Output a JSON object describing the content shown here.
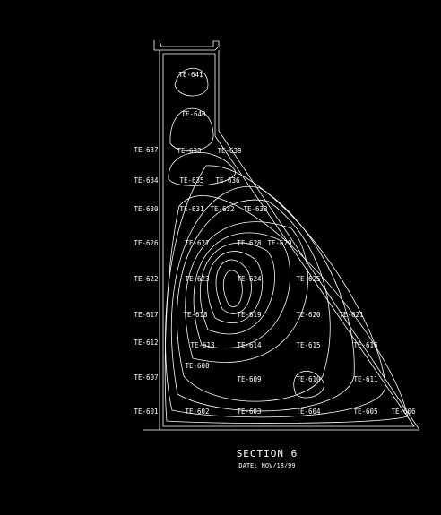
{
  "diagram": {
    "title": "SECTION 6",
    "date": "DATE: NOV/18/99",
    "sensors": [
      "TE-641",
      "TE-640",
      "TE-637",
      "TE-638",
      "TE-639",
      "TE-634",
      "TE-635",
      "TE-636",
      "TE-630",
      "TE-631",
      "TE-632",
      "TE-633",
      "TE-626",
      "TE-627",
      "TE-628",
      "TE-629",
      "TE-622",
      "TE-623",
      "TE-624",
      "TE-625",
      "TE-617",
      "TE-618",
      "TE-619",
      "TE-620",
      "TE-621",
      "TE-612",
      "TE-613",
      "TE-614",
      "TE-615",
      "TE-616",
      "TE-607",
      "TE-608",
      "TE-609",
      "TE-610",
      "TE-611",
      "TE-601",
      "TE-602",
      "TE-603",
      "TE-604",
      "TE-605",
      "TE-606"
    ]
  }
}
